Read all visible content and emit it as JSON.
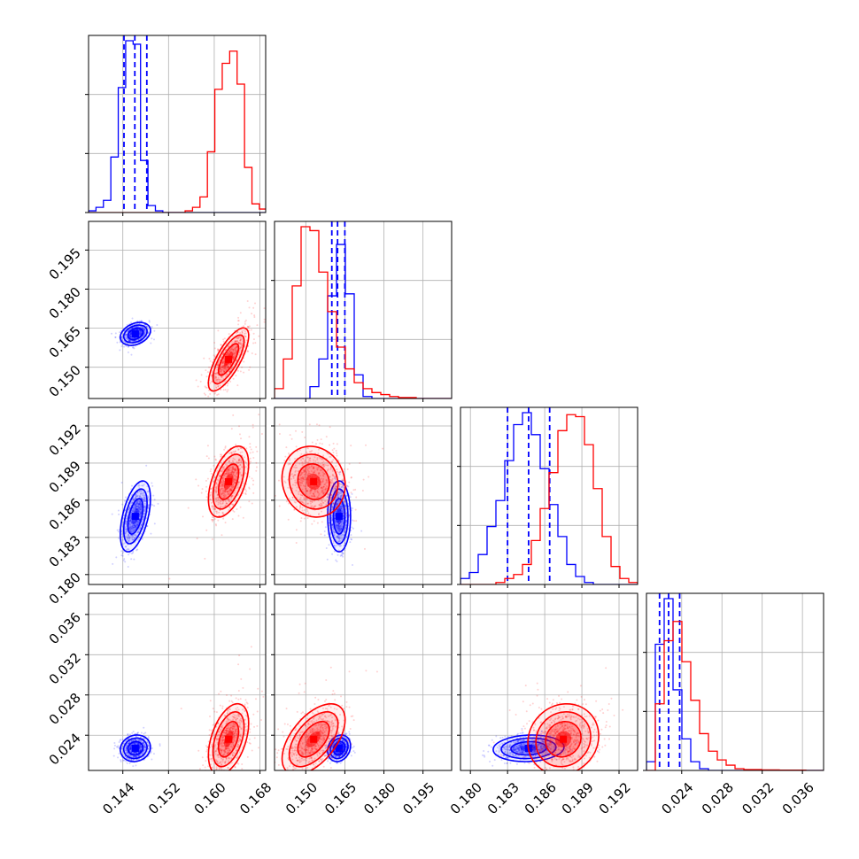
{
  "chart_data": {
    "type": "corner",
    "parameters": 4,
    "colors": {
      "series_a": "#0000ff",
      "series_b": "#ff0000",
      "grid": "#b0b0b0",
      "frame": "#000000"
    },
    "axes": {
      "p1": {
        "range": [
          0.138,
          0.169
        ],
        "ticks": [
          0.144,
          0.152,
          0.16,
          0.168
        ],
        "tick_labels": [
          "0.144",
          "0.152",
          "0.160",
          "0.168"
        ]
      },
      "p2": {
        "range": [
          0.138,
          0.206
        ],
        "ticks": [
          0.15,
          0.165,
          0.18,
          0.195
        ],
        "tick_labels": [
          "0.150",
          "0.165",
          "0.180",
          "0.195"
        ]
      },
      "p3": {
        "range": [
          0.1792,
          0.1935
        ],
        "ticks": [
          0.18,
          0.183,
          0.186,
          0.189,
          0.192
        ],
        "tick_labels": [
          "0.180",
          "0.183",
          "0.186",
          "0.189",
          "0.192"
        ]
      },
      "p4": {
        "range": [
          0.0205,
          0.0381
        ],
        "ticks": [
          0.024,
          0.028,
          0.032,
          0.036
        ],
        "tick_labels": [
          "0.024",
          "0.028",
          "0.032",
          "0.036"
        ]
      }
    },
    "series": [
      {
        "color": "#0000ff",
        "mean": {
          "p1": 0.1462,
          "p2": 0.1628,
          "p3": 0.1847,
          "p4": 0.0227
        },
        "std": {
          "p1": 0.0012,
          "p2": 0.002,
          "p3": 0.0013,
          "p4": 0.0006
        },
        "quantiles": {
          "p1": [
            0.1442,
            0.1461,
            0.1482
          ],
          "p2": [
            0.16,
            0.1622,
            0.165
          ],
          "p3": [
            0.183,
            0.1847,
            0.1864
          ],
          "p4": [
            0.0218,
            0.0227,
            0.0238
          ]
        },
        "histograms": {
          "p1": {
            "edges_start": 0.138,
            "bin_width": 0.0013,
            "counts": [
              0.01,
              0.03,
              0.07,
              0.32,
              0.72,
              0.99,
              0.97,
              0.3,
              0.04,
              0.01,
              0,
              0,
              0,
              0,
              0,
              0,
              0,
              0,
              0,
              0,
              0,
              0,
              0,
              0
            ]
          },
          "p2": {
            "edges_start": 0.138,
            "bin_width": 0.0034,
            "counts": [
              0,
              0,
              0,
              0,
              0.06,
              0.2,
              0.52,
              0.78,
              0.53,
              0.12,
              0.01,
              0,
              0,
              0,
              0,
              0,
              0,
              0,
              0,
              0
            ]
          },
          "p3": {
            "edges_start": 0.1792,
            "bin_width": 0.000715,
            "counts": [
              0.03,
              0.06,
              0.15,
              0.29,
              0.42,
              0.62,
              0.8,
              0.86,
              0.75,
              0.58,
              0.4,
              0.24,
              0.1,
              0.04,
              0.01,
              0,
              0,
              0,
              0,
              0
            ]
          },
          "p4": {
            "edges_start": 0.0205,
            "bin_width": 0.00088,
            "counts": [
              0.05,
              0.72,
              0.98,
              0.46,
              0.18,
              0.05,
              0.01,
              0,
              0,
              0,
              0,
              0,
              0,
              0,
              0,
              0,
              0,
              0,
              0,
              0
            ]
          }
        }
      },
      {
        "color": "#ff0000",
        "mean": {
          "p1": 0.1625,
          "p2": 0.153,
          "p3": 0.1875,
          "p4": 0.0236
        },
        "std": {
          "p1": 0.0016,
          "p2": 0.0055,
          "p3": 0.0013,
          "p4": 0.0016
        },
        "quantiles": null,
        "histograms": {
          "p1": {
            "edges_start": 0.138,
            "bin_width": 0.0013,
            "counts": [
              0,
              0,
              0,
              0,
              0,
              0,
              0,
              0,
              0,
              0,
              0,
              0,
              0,
              0.01,
              0.03,
              0.09,
              0.35,
              0.71,
              0.86,
              0.93,
              0.74,
              0.26,
              0.05,
              0.02
            ]
          },
          "p2": {
            "edges_start": 0.138,
            "bin_width": 0.0034,
            "counts": [
              0.05,
              0.2,
              0.57,
              0.87,
              0.85,
              0.64,
              0.44,
              0.26,
              0.15,
              0.08,
              0.05,
              0.03,
              0.02,
              0.01,
              0.005,
              0.005,
              0,
              0,
              0,
              0
            ]
          },
          "p3": {
            "edges_start": 0.1792,
            "bin_width": 0.000715,
            "counts": [
              0,
              0,
              0,
              0,
              0.01,
              0.03,
              0.05,
              0.1,
              0.22,
              0.38,
              0.56,
              0.77,
              0.85,
              0.84,
              0.7,
              0.48,
              0.24,
              0.09,
              0.03,
              0.01
            ]
          },
          "p4": {
            "edges_start": 0.0205,
            "bin_width": 0.00088,
            "counts": [
              0,
              0.38,
              0.74,
              0.85,
              0.62,
              0.4,
              0.21,
              0.11,
              0.06,
              0.03,
              0.01,
              0.005,
              0.005,
              0.003,
              0.003,
              0.002,
              0.002,
              0.002,
              0,
              0
            ]
          }
        }
      }
    ],
    "correlation": {
      "series_a": {
        "p1_p2": 0.3,
        "p1_p3": 0.5,
        "p1_p4": 0.1,
        "p2_p3": 0.0,
        "p2_p4": 0.2,
        "p3_p4": 0.1
      },
      "series_b": {
        "p1_p2": 0.75,
        "p1_p3": 0.5,
        "p1_p4": 0.45,
        "p2_p3": -0.1,
        "p2_p4": 0.55,
        "p3_p4": 0.1
      }
    },
    "grid": true,
    "legend": null
  }
}
